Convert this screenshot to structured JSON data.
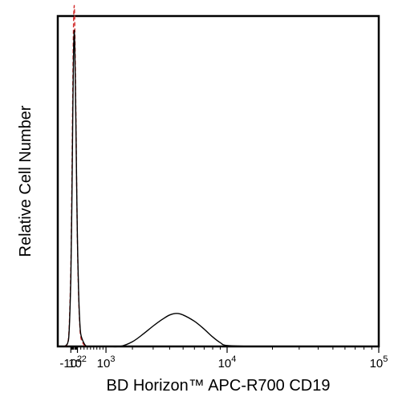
{
  "chart_data": {
    "type": "area",
    "xlabel": "BD Horizon™ APC-R700 CD19",
    "ylabel": "Relative Cell Number",
    "x_scale": "biexponential",
    "xlim": [
      -500,
      100000
    ],
    "ylim": [
      0,
      1.05
    ],
    "grid": false,
    "legend": "none",
    "x_ticks": [
      {
        "base": "-10",
        "exp": "2",
        "value": -100
      },
      {
        "base": "10",
        "exp": "2",
        "value": 100
      },
      {
        "base": "10",
        "exp": "3",
        "value": 1000
      },
      {
        "base": "10",
        "exp": "4",
        "value": 10000
      },
      {
        "base": "10",
        "exp": "5",
        "value": 100000
      }
    ],
    "series": [
      {
        "style": "solid",
        "color": "#000000",
        "x": [
          -300,
          -200,
          -150,
          -100,
          -70,
          -40,
          -20,
          0,
          10,
          20,
          40,
          60,
          80,
          100,
          130,
          160,
          200,
          300,
          400,
          600,
          1000,
          1500,
          2000,
          2500,
          3000,
          3500,
          4000,
          4500,
          5000,
          6000,
          7000,
          8000,
          9000,
          10000,
          15000
        ],
        "y": [
          0.0,
          0.01,
          0.05,
          0.22,
          0.44,
          0.74,
          0.92,
          1.0,
          0.99,
          0.95,
          0.82,
          0.65,
          0.48,
          0.34,
          0.19,
          0.1,
          0.04,
          0.01,
          0.0,
          0.0,
          0.0,
          0.0,
          0.015,
          0.04,
          0.065,
          0.085,
          0.1,
          0.105,
          0.1,
          0.08,
          0.055,
          0.03,
          0.012,
          0.003,
          0.0
        ]
      },
      {
        "style": "dashed",
        "color": "#d32f2f",
        "x": [
          -300,
          -200,
          -150,
          -100,
          -70,
          -40,
          -20,
          0,
          10,
          20,
          40,
          60,
          80,
          100,
          130,
          160,
          200,
          300,
          400
        ],
        "y": [
          0.0,
          0.01,
          0.06,
          0.25,
          0.5,
          0.82,
          1.02,
          1.08,
          1.07,
          1.02,
          0.86,
          0.67,
          0.48,
          0.33,
          0.18,
          0.09,
          0.03,
          0.005,
          0.0
        ]
      }
    ]
  }
}
